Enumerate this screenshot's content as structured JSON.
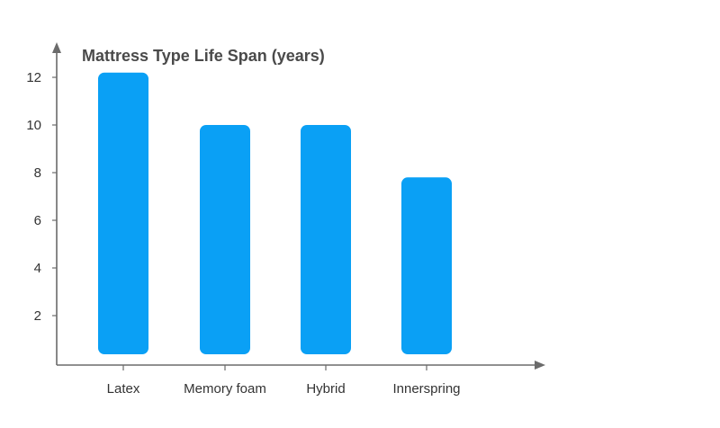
{
  "chart_data": {
    "type": "bar",
    "title": "Mattress Type Life Span (years)",
    "xlabel": "",
    "ylabel": "",
    "categories": [
      "Latex",
      "Memory foam",
      "Hybrid",
      "Innerspring"
    ],
    "values": [
      12.2,
      10,
      10,
      7.8
    ],
    "ylim": [
      0.5,
      12.5
    ],
    "yticks": [
      2,
      4,
      6,
      8,
      10,
      12
    ],
    "grid": false,
    "legend": "none",
    "bar_color": "#0aa0f5"
  }
}
